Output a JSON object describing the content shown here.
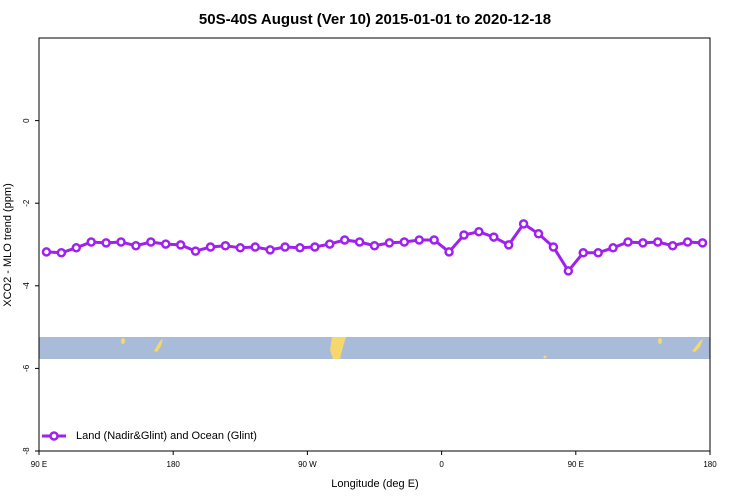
{
  "chart_data": {
    "type": "line",
    "title": "50S-40S August (Ver 10)   2015-01-01 to 2020-12-18",
    "x_label": "Longitude (deg E)",
    "y_label": "XCO2 - MLO trend (ppm)",
    "x": [
      95,
      105,
      115,
      125,
      135,
      145,
      155,
      165,
      175,
      185,
      195,
      205,
      215,
      225,
      235,
      245,
      255,
      265,
      275,
      285,
      295,
      305,
      315,
      325,
      335,
      345,
      355,
      365,
      375,
      385,
      395,
      405,
      415,
      425,
      435,
      445,
      455,
      465,
      475,
      485,
      495,
      505,
      515,
      525,
      535
    ],
    "series": [
      {
        "name": "Land (Nadir&Glint) and Ocean (Glint)",
        "color": "#a020f0",
        "values": [
          -3.18,
          -3.2,
          -3.08,
          -2.94,
          -2.96,
          -2.94,
          -3.03,
          -2.94,
          -2.99,
          -3.01,
          -3.16,
          -3.06,
          -3.03,
          -3.08,
          -3.06,
          -3.13,
          -3.06,
          -3.08,
          -3.06,
          -2.99,
          -2.89,
          -2.94,
          -3.03,
          -2.96,
          -2.94,
          -2.89,
          -2.89,
          -3.18,
          -2.77,
          -2.69,
          -2.82,
          -3.01,
          -2.5,
          -2.74,
          -3.06,
          -3.64,
          -3.2,
          -3.2,
          -3.08,
          -2.94,
          -2.96,
          -2.94,
          -3.03,
          -2.94,
          -2.96
        ]
      }
    ],
    "xlim": [
      90,
      540
    ],
    "xticks": [
      {
        "value": 90,
        "label": "90 E"
      },
      180,
      {
        "value": 270,
        "label": "90 W"
      },
      {
        "value": 360,
        "label": "0"
      },
      {
        "value": 450,
        "label": "90 E"
      },
      {
        "value": 540,
        "label": "180"
      }
    ],
    "ylim": [
      -8,
      2
    ],
    "yticks": [
      0,
      -2,
      -4,
      -6,
      -8
    ],
    "legend": "bottom-left"
  }
}
